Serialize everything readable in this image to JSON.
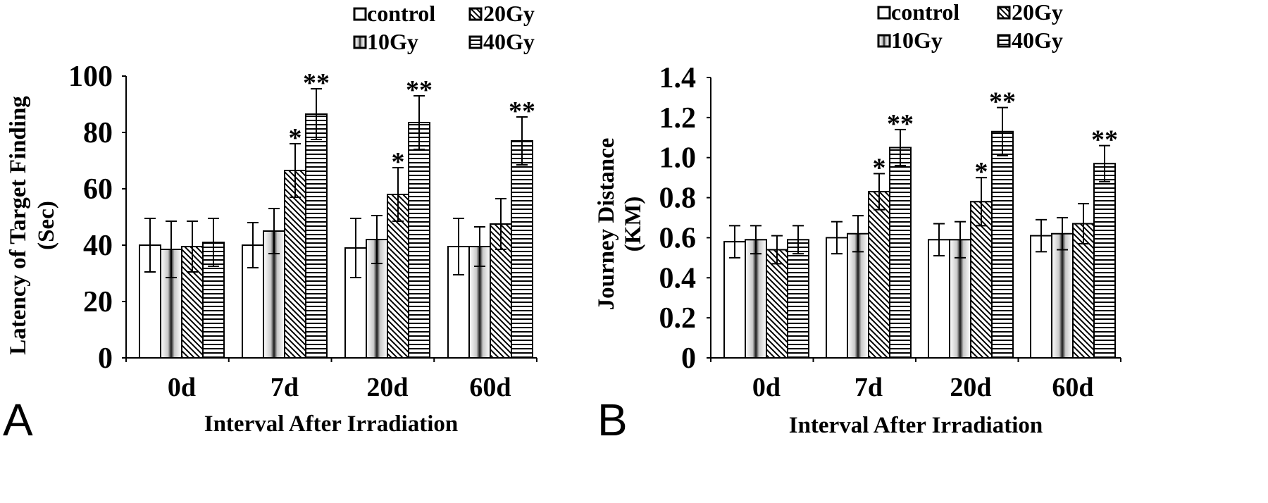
{
  "chart_data": [
    {
      "panel_label": "A",
      "type": "bar",
      "categories": [
        "0d",
        "7d",
        "20d",
        "60d"
      ],
      "series": [
        {
          "name": "control",
          "values": [
            40,
            40,
            39,
            39.5
          ]
        },
        {
          "name": "10Gy",
          "values": [
            38.5,
            45,
            42,
            39.5
          ]
        },
        {
          "name": "20Gy",
          "values": [
            39.5,
            66.5,
            58,
            47.5
          ]
        },
        {
          "name": "40Gy",
          "values": [
            41,
            86.5,
            83.5,
            77
          ]
        }
      ],
      "errors": [
        [
          9.5,
          8,
          10.5,
          10
        ],
        [
          10,
          8,
          8.5,
          7
        ],
        [
          9,
          9.5,
          9.5,
          9
        ],
        [
          8.5,
          9,
          9.5,
          8.5
        ]
      ],
      "significance": [
        [
          "",
          "",
          "",
          ""
        ],
        [
          "",
          "",
          "",
          ""
        ],
        [
          "",
          "*",
          "*",
          ""
        ],
        [
          "",
          "**",
          "**",
          "**"
        ]
      ],
      "ylim": [
        0,
        100
      ],
      "yticks": [
        "0",
        "20",
        "40",
        "60",
        "80",
        "100"
      ],
      "ylabel": "Latency of Target Finding",
      "ylabel2": "(Sec)",
      "xlabel": "Interval After Irradiation",
      "legend_position": "top-right"
    },
    {
      "panel_label": "B",
      "type": "bar",
      "categories": [
        "0d",
        "7d",
        "20d",
        "60d"
      ],
      "series": [
        {
          "name": "control",
          "values": [
            0.58,
            0.6,
            0.59,
            0.61
          ]
        },
        {
          "name": "10Gy",
          "values": [
            0.59,
            0.62,
            0.59,
            0.62
          ]
        },
        {
          "name": "20Gy",
          "values": [
            0.54,
            0.83,
            0.78,
            0.67
          ]
        },
        {
          "name": "40Gy",
          "values": [
            0.59,
            1.05,
            1.13,
            0.97
          ]
        }
      ],
      "errors": [
        [
          0.08,
          0.08,
          0.08,
          0.08
        ],
        [
          0.07,
          0.09,
          0.09,
          0.08
        ],
        [
          0.07,
          0.09,
          0.12,
          0.1
        ],
        [
          0.07,
          0.09,
          0.12,
          0.09
        ]
      ],
      "significance": [
        [
          "",
          "",
          "",
          ""
        ],
        [
          "",
          "",
          "",
          ""
        ],
        [
          "",
          "*",
          "*",
          ""
        ],
        [
          "",
          "**",
          "**",
          "**"
        ]
      ],
      "ylim": [
        0,
        1.4
      ],
      "yticks": [
        "0",
        "0.2",
        "0.4",
        "0.6",
        "0.8",
        "1.0",
        "1.2",
        "1.4"
      ],
      "ylabel": "Journey Distance",
      "ylabel2": "(KM)",
      "xlabel": "Interval After Irradiation",
      "legend_position": "top-right"
    }
  ]
}
